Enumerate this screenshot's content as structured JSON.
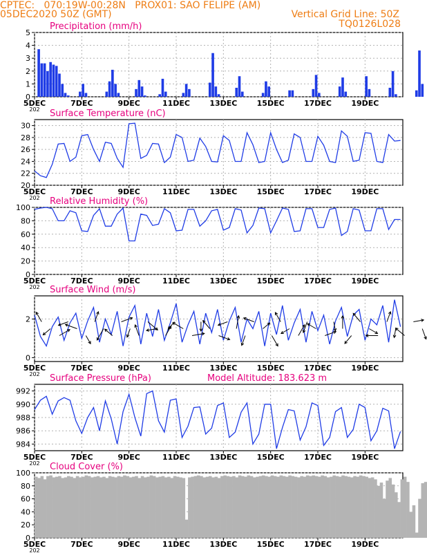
{
  "header": {
    "line1": "CPTEC:   070:19W-00:28N   PROX01: SAO FELIPE (AM)",
    "line2": "05DEC2020 50Z (GMT)",
    "grid_note": "Vertical Grid Line: 50Z",
    "code": "TQ0126L028"
  },
  "colors": {
    "header": "#ee7d14",
    "panel_title": "#e6007e",
    "series": "#1f3ce6",
    "cloud": "#b4b4b4",
    "arrow": "#000000"
  },
  "x_ticks": [
    "5DEC",
    "7DEC",
    "9DEC",
    "11DEC",
    "13DEC",
    "15DEC",
    "17DEC",
    "19DEC"
  ],
  "x_extra": "202",
  "chart_data": [
    {
      "id": "precip",
      "type": "bar",
      "title": "Precipitation  (mm/h)",
      "ylim": [
        0,
        5
      ],
      "yticks": [
        0,
        1,
        2,
        3,
        4,
        5
      ],
      "start_day": 5,
      "step_hours": 3,
      "values": [
        0.0,
        3.7,
        2.6,
        2.6,
        2.0,
        2.7,
        2.5,
        2.4,
        1.8,
        1.0,
        0.3,
        0.1,
        0.0,
        0.0,
        0.0,
        0.4,
        1.0,
        0.3,
        0.0,
        0.0,
        0.0,
        0.0,
        0.0,
        0.0,
        0.4,
        1.2,
        2.1,
        1.0,
        0.3,
        0.0,
        0.0,
        0.0,
        0.0,
        0.0,
        0.6,
        1.3,
        0.8,
        0.1,
        0.0,
        0.0,
        0.0,
        0.0,
        0.2,
        1.4,
        0.4,
        0.0,
        0.0,
        0.0,
        0.0,
        0.0,
        0.3,
        1.0,
        0.6,
        0.0,
        0.0,
        0.0,
        0.0,
        0.0,
        0.0,
        1.1,
        3.4,
        0.8,
        0.2,
        0.0,
        0.0,
        0.0,
        0.0,
        0.0,
        0.7,
        1.6,
        0.4,
        0.0,
        0.0,
        0.0,
        0.0,
        0.0,
        0.0,
        0.3,
        1.2,
        0.8,
        0.0,
        0.0,
        0.0,
        0.0,
        0.0,
        0.0,
        0.5,
        0.5,
        0.0,
        0.0,
        0.0,
        0.0,
        0.0,
        0.0,
        0.6,
        1.7,
        0.3,
        0.0,
        0.0,
        0.0,
        0.0,
        0.0,
        0.0,
        0.8,
        1.5,
        0.4,
        0.0,
        0.0,
        0.0,
        0.0,
        0.0,
        0.0,
        1.6,
        0.6,
        0.0,
        0.0,
        0.0,
        0.0,
        0.0,
        0.0,
        0.7,
        2.0,
        0.2,
        0.0,
        0.0,
        0.0,
        0.0,
        0.0,
        0.0,
        0.5,
        3.6,
        1.0,
        0.0,
        0.0,
        0.0,
        0.0,
        0.0,
        0.0,
        0.8,
        1.2,
        0.3,
        0.0,
        0.0,
        0.0,
        0.0,
        0.0,
        0.0,
        0.9,
        1.4,
        0.2,
        0.0,
        0.0,
        0.0,
        0.0,
        0.0,
        0.3,
        1.6
      ]
    },
    {
      "id": "temp",
      "type": "line",
      "title": "Surface Temperature (nC)",
      "ylim": [
        20,
        31
      ],
      "yticks": [
        20,
        22,
        24,
        26,
        28,
        30
      ],
      "start_day": 5,
      "step_hours": 6,
      "values": [
        22.4,
        21.6,
        21.3,
        23.5,
        26.9,
        27.0,
        24.0,
        24.7,
        28.3,
        28.5,
        26.0,
        24.0,
        27.2,
        27.0,
        24.5,
        23.0,
        30.3,
        30.4,
        24.5,
        25.0,
        27.0,
        26.9,
        23.8,
        24.7,
        28.5,
        28.0,
        24.0,
        24.2,
        27.9,
        26.5,
        24.0,
        23.9,
        28.3,
        27.5,
        24.0,
        24.0,
        28.8,
        26.8,
        23.8,
        24.0,
        28.8,
        26.0,
        23.8,
        24.2,
        28.6,
        28.0,
        24.0,
        24.0,
        28.2,
        26.7,
        24.0,
        23.8,
        29.1,
        28.2,
        24.0,
        24.2,
        28.8,
        28.7,
        24.0,
        23.8,
        28.5,
        27.4,
        27.5
      ]
    },
    {
      "id": "rh",
      "type": "line",
      "title": "Relative Humidity (%)",
      "ylim": [
        0,
        100
      ],
      "yticks": [
        0,
        20,
        40,
        60,
        80,
        100
      ],
      "start_day": 5,
      "step_hours": 6,
      "values": [
        97,
        99,
        100,
        98,
        80,
        80,
        95,
        92,
        65,
        64,
        88,
        98,
        72,
        72,
        90,
        99,
        50,
        50,
        90,
        88,
        73,
        75,
        98,
        92,
        65,
        66,
        97,
        97,
        72,
        80,
        95,
        97,
        66,
        70,
        98,
        96,
        62,
        73,
        99,
        98,
        62,
        80,
        99,
        97,
        64,
        65,
        98,
        98,
        70,
        70,
        97,
        99,
        58,
        64,
        98,
        96,
        65,
        65,
        98,
        98,
        67,
        82,
        82
      ]
    },
    {
      "id": "wind",
      "type": "line",
      "title": "Surface Wind  (m/s)",
      "ylim": [
        -0.2,
        3.2
      ],
      "yticks": [
        0,
        2
      ],
      "start_day": 5,
      "step_hours": 6,
      "values": [
        2.2,
        1.1,
        0.6,
        1.6,
        2.1,
        0.9,
        1.8,
        2.3,
        1.0,
        1.9,
        2.6,
        0.8,
        2.0,
        1.2,
        2.4,
        0.6,
        2.1,
        2.7,
        0.7,
        2.3,
        1.1,
        2.5,
        0.9,
        1.8,
        2.8,
        0.8,
        1.7,
        2.4,
        0.7,
        2.3,
        1.3,
        2.5,
        0.9,
        1.9,
        2.6,
        0.8,
        2.0,
        1.5,
        2.4,
        0.6,
        2.3,
        1.2,
        2.7,
        0.9,
        1.8,
        2.5,
        0.8,
        2.4,
        1.4,
        2.2,
        0.7,
        1.9,
        2.6,
        1.1,
        2.2,
        2.5,
        0.9,
        2.0,
        1.7,
        2.7,
        0.8,
        3.0,
        1.6
      ]
    },
    {
      "id": "pres",
      "type": "line",
      "title": "Surface Pressure (hPa)",
      "annotation": "Model Altitude: 183.623  m",
      "ylim": [
        983,
        993
      ],
      "yticks": [
        984,
        986,
        988,
        990,
        992
      ],
      "start_day": 5,
      "step_hours": 6,
      "values": [
        989.2,
        990.6,
        991.2,
        988.5,
        990.5,
        991.0,
        990.6,
        987.5,
        985.6,
        988.0,
        989.5,
        986.0,
        990.5,
        987.8,
        984.0,
        988.9,
        991.5,
        988.0,
        985.2,
        991.6,
        992.0,
        987.5,
        985.8,
        990.6,
        990.8,
        985.0,
        986.7,
        989.5,
        989.6,
        985.5,
        986.4,
        989.8,
        990.2,
        985.0,
        985.8,
        988.8,
        990.2,
        984.0,
        985.5,
        990.0,
        990.0,
        983.3,
        986.5,
        989.2,
        989.0,
        984.6,
        986.6,
        990.2,
        989.8,
        983.8,
        985.0,
        988.9,
        989.5,
        985.0,
        986.2,
        990.0,
        989.5,
        984.5,
        986.0,
        989.4,
        989.0,
        983.3,
        985.9
      ]
    },
    {
      "id": "cloud",
      "type": "area",
      "title": "Cloud Cover (%)",
      "ylim": [
        0,
        100
      ],
      "yticks": [
        0,
        20,
        40,
        60,
        80,
        100
      ],
      "start_day": 5,
      "step_hours": 3,
      "values": [
        94,
        92,
        95,
        90,
        95,
        96,
        93,
        94,
        95,
        92,
        93,
        95,
        94,
        92,
        95,
        93,
        94,
        96,
        95,
        93,
        94,
        95,
        93,
        94,
        92,
        95,
        94,
        93,
        95,
        94,
        96,
        95,
        93,
        94,
        95,
        92,
        95,
        93,
        94,
        96,
        95,
        93,
        94,
        95,
        93,
        94,
        92,
        95,
        94,
        93,
        92,
        28,
        93,
        94,
        95,
        96,
        95,
        93,
        94,
        95,
        93,
        94,
        92,
        95,
        96,
        95,
        94,
        95,
        93,
        96,
        95,
        94,
        96,
        95,
        93,
        94,
        95,
        96,
        95,
        94,
        96,
        95,
        94,
        96,
        95,
        94,
        96,
        95,
        94,
        93,
        95,
        94,
        96,
        95,
        96,
        95,
        94,
        96,
        95,
        93,
        94,
        96,
        95,
        94,
        96,
        95,
        94,
        93,
        95,
        94,
        96,
        95,
        94,
        92,
        93,
        90,
        80,
        85,
        60,
        88,
        92,
        82,
        70,
        55,
        90,
        94,
        86,
        40,
        50,
        8,
        60,
        84,
        86,
        93,
        6,
        80,
        90,
        35,
        93,
        95,
        96,
        94,
        95,
        93,
        90,
        92,
        94,
        95,
        93,
        94,
        92,
        95,
        94,
        93,
        95,
        96,
        92,
        90,
        95
      ]
    }
  ],
  "wind_vectors": {
    "spacing_hours": 9,
    "x_labels_note": "",
    "angles_deg": [
      120,
      220,
      30,
      200,
      160,
      300,
      70,
      240,
      140,
      20,
      250,
      110,
      320,
      190,
      60,
      230,
      150,
      10,
      270,
      130,
      340,
      200,
      80,
      250,
      160,
      40,
      300,
      120,
      210,
      60,
      250,
      150,
      20,
      280,
      90,
      230,
      130,
      330,
      180,
      70,
      260,
      140,
      10,
      290
    ],
    "speeds": [
      1.6,
      1.2,
      1.9,
      1.4,
      2.0,
      1.1,
      1.5,
      2.2,
      1.3,
      1.8,
      1.0,
      1.7,
      2.1,
      1.4,
      1.6,
      1.2,
      1.9,
      2.0,
      1.1,
      1.5,
      1.8,
      1.3,
      2.2,
      1.4,
      1.6,
      1.0,
      1.9,
      1.5,
      1.2,
      2.0,
      1.7,
      1.3,
      1.8,
      1.1,
      2.1,
      1.4,
      1.6,
      1.2,
      1.9,
      1.5,
      1.0,
      1.8,
      1.4,
      1.6
    ]
  }
}
